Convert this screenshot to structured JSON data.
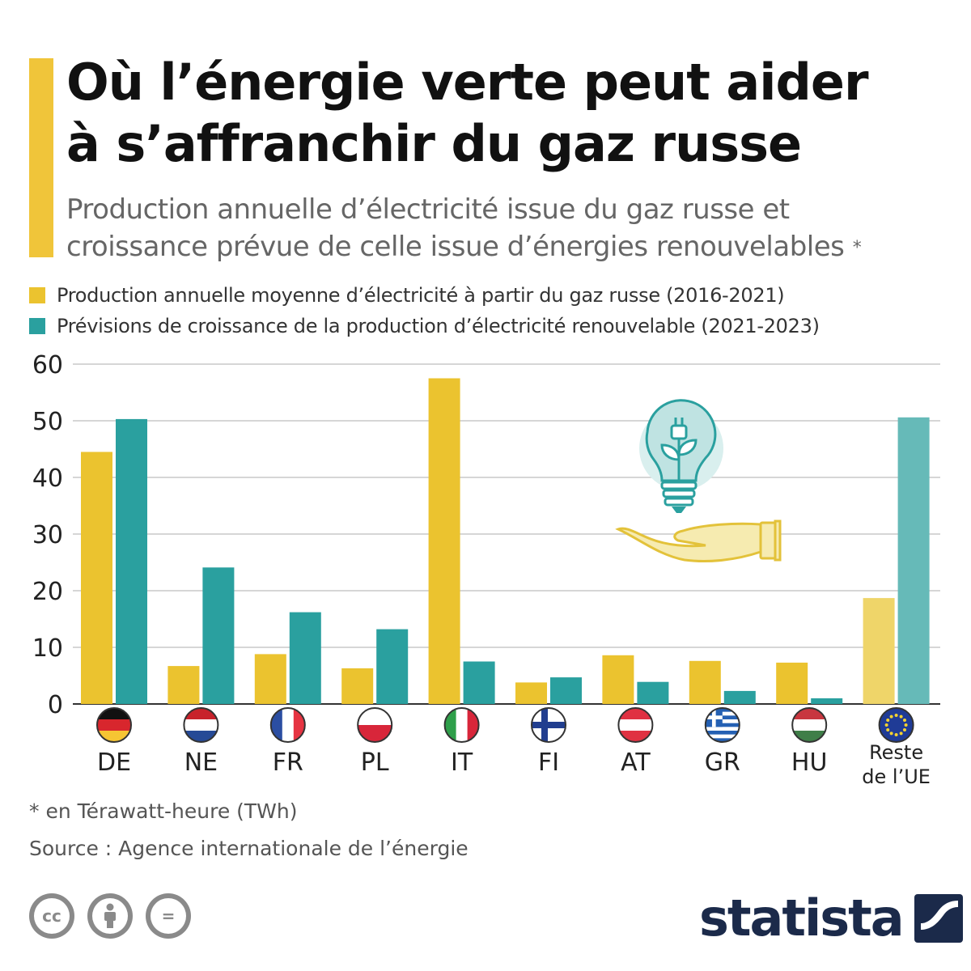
{
  "title_line1": "Où l’énergie verte peut aider",
  "title_line2": "à s’affranchir du gaz russe",
  "subtitle_line1": "Production annuelle d’électricité issue du gaz russe et",
  "subtitle_line2": "croissance prévue de celle issue d’énergies renouvelables",
  "subtitle_star": "*",
  "footnote": "* en Térawatt-heure (TWh)",
  "source": "Source : Agence internationale de l’énergie",
  "brand": "statista",
  "license_icons": [
    "creative-commons-icon",
    "attribution-icon",
    "no-derivatives-icon"
  ],
  "license_labels": [
    "cc",
    "",
    "="
  ],
  "colors": {
    "gas": "#ebc32f",
    "renewable": "#2aa09f",
    "gas_highlight": "#efd569",
    "renewable_highlight": "#66bab8",
    "accent": "#f0c53a",
    "brand": "#1b2a4a"
  },
  "chart_data": {
    "type": "bar",
    "title": "Où l’énergie verte peut aider à s’affranchir du gaz russe",
    "categories": [
      "DE",
      "NE",
      "FR",
      "PL",
      "IT",
      "FI",
      "AT",
      "GR",
      "HU",
      "Reste de l’UE"
    ],
    "category_flags": [
      "germany-flag-icon",
      "netherlands-flag-icon",
      "france-flag-icon",
      "poland-flag-icon",
      "italy-flag-icon",
      "finland-flag-icon",
      "austria-flag-icon",
      "greece-flag-icon",
      "hungary-flag-icon",
      "eu-flag-icon"
    ],
    "series": [
      {
        "name": "Production annuelle moyenne d’électricité à partir du gaz russe (2016-2021)",
        "values": [
          44.5,
          6.7,
          8.8,
          6.3,
          57.5,
          3.8,
          8.6,
          7.6,
          7.3,
          18.7
        ]
      },
      {
        "name": "Prévisions de croissance de la production d’électricité renouvelable (2021-2023)",
        "values": [
          50.3,
          24.1,
          16.2,
          13.2,
          7.5,
          4.7,
          3.9,
          2.3,
          1.0,
          50.6
        ]
      }
    ],
    "ylim": [
      0,
      60
    ],
    "yticks": [
      0,
      10,
      20,
      30,
      40,
      50,
      60
    ],
    "grid": true,
    "legend": "top-left",
    "illustration": "lightbulb-in-hand-icon"
  }
}
